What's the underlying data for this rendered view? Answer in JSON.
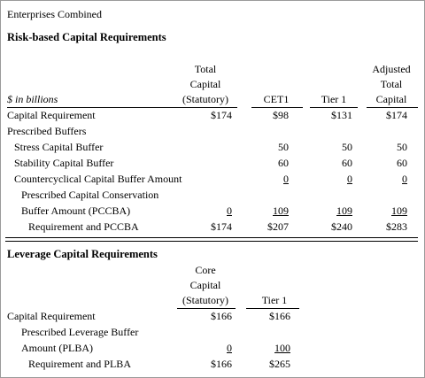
{
  "title": "Enterprises Combined",
  "rb": {
    "heading": "Risk-based Capital Requirements",
    "units": "$ in billions",
    "col_total": [
      "Total",
      "Capital",
      "(Statutory)"
    ],
    "col_cet1": "CET1",
    "col_tier1": "Tier 1",
    "col_adj": [
      "Adjusted",
      "Total",
      "Capital"
    ],
    "rows": {
      "capreq": {
        "label": "Capital Requirement",
        "total": "$174",
        "cet1": "$98",
        "tier1": "$131",
        "adj": "$174"
      },
      "pb": {
        "label": "Prescribed Buffers"
      },
      "scb": {
        "label": "Stress Capital Buffer",
        "cet1": "50",
        "tier1": "50",
        "adj": "50"
      },
      "stab": {
        "label": "Stability Capital Buffer",
        "cet1": "60",
        "tier1": "60",
        "adj": "60"
      },
      "ccba": {
        "label": "Countercyclical Capital Buffer Amount",
        "cet1": "0",
        "tier1": "0",
        "adj": "0"
      },
      "pccba1": {
        "label": "Prescribed Capital Conservation"
      },
      "pccba2": {
        "label": "Buffer Amount (PCCBA)",
        "total": "0",
        "cet1": "109",
        "tier1": "109",
        "adj": "109"
      },
      "reqp": {
        "label": "Requirement and PCCBA",
        "total": "$174",
        "cet1": "$207",
        "tier1": "$240",
        "adj": "$283"
      }
    }
  },
  "lev": {
    "heading": "Leverage Capital Requirements",
    "col_core": [
      "Core",
      "Capital",
      "(Statutory)"
    ],
    "col_tier1": "Tier 1",
    "rows": {
      "capreq": {
        "label": "Capital Requirement",
        "core": "$166",
        "tier1": "$166"
      },
      "plb1": {
        "label": "Prescribed Leverage Buffer"
      },
      "plb2": {
        "label": "Amount (PLBA)",
        "core": "0",
        "tier1": "100"
      },
      "reql": {
        "label": "Requirement and PLBA",
        "core": "$166",
        "tier1": "$265"
      }
    }
  }
}
